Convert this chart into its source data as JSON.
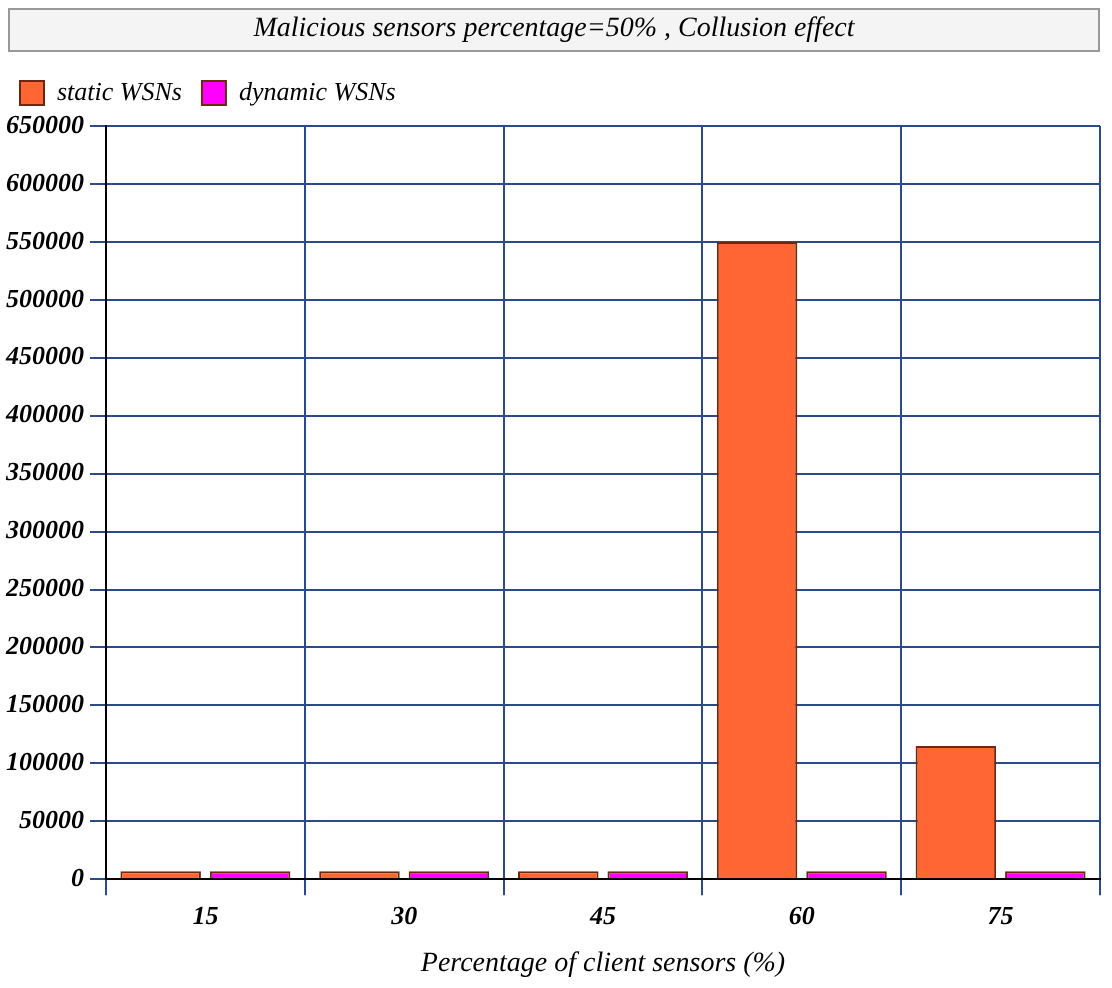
{
  "chart_data": {
    "type": "bar",
    "title": "Malicious sensors percentage=50% , Collusion effect",
    "xlabel": "Percentage of client sensors (%)",
    "categories": [
      "15",
      "30",
      "45",
      "60",
      "75"
    ],
    "series": [
      {
        "name": "static WSNs",
        "color": "#ff6633",
        "values": [
          0,
          0,
          0,
          550000,
          115000
        ]
      },
      {
        "name": "dynamic WSNs",
        "color": "#ff00ff",
        "values": [
          0,
          0,
          0,
          0,
          0
        ]
      }
    ],
    "ylim": [
      0,
      650000
    ],
    "yticks": [
      0,
      50000,
      100000,
      150000,
      200000,
      250000,
      300000,
      350000,
      400000,
      450000,
      500000,
      550000,
      600000,
      650000
    ],
    "grid": true,
    "legend": "top left"
  }
}
